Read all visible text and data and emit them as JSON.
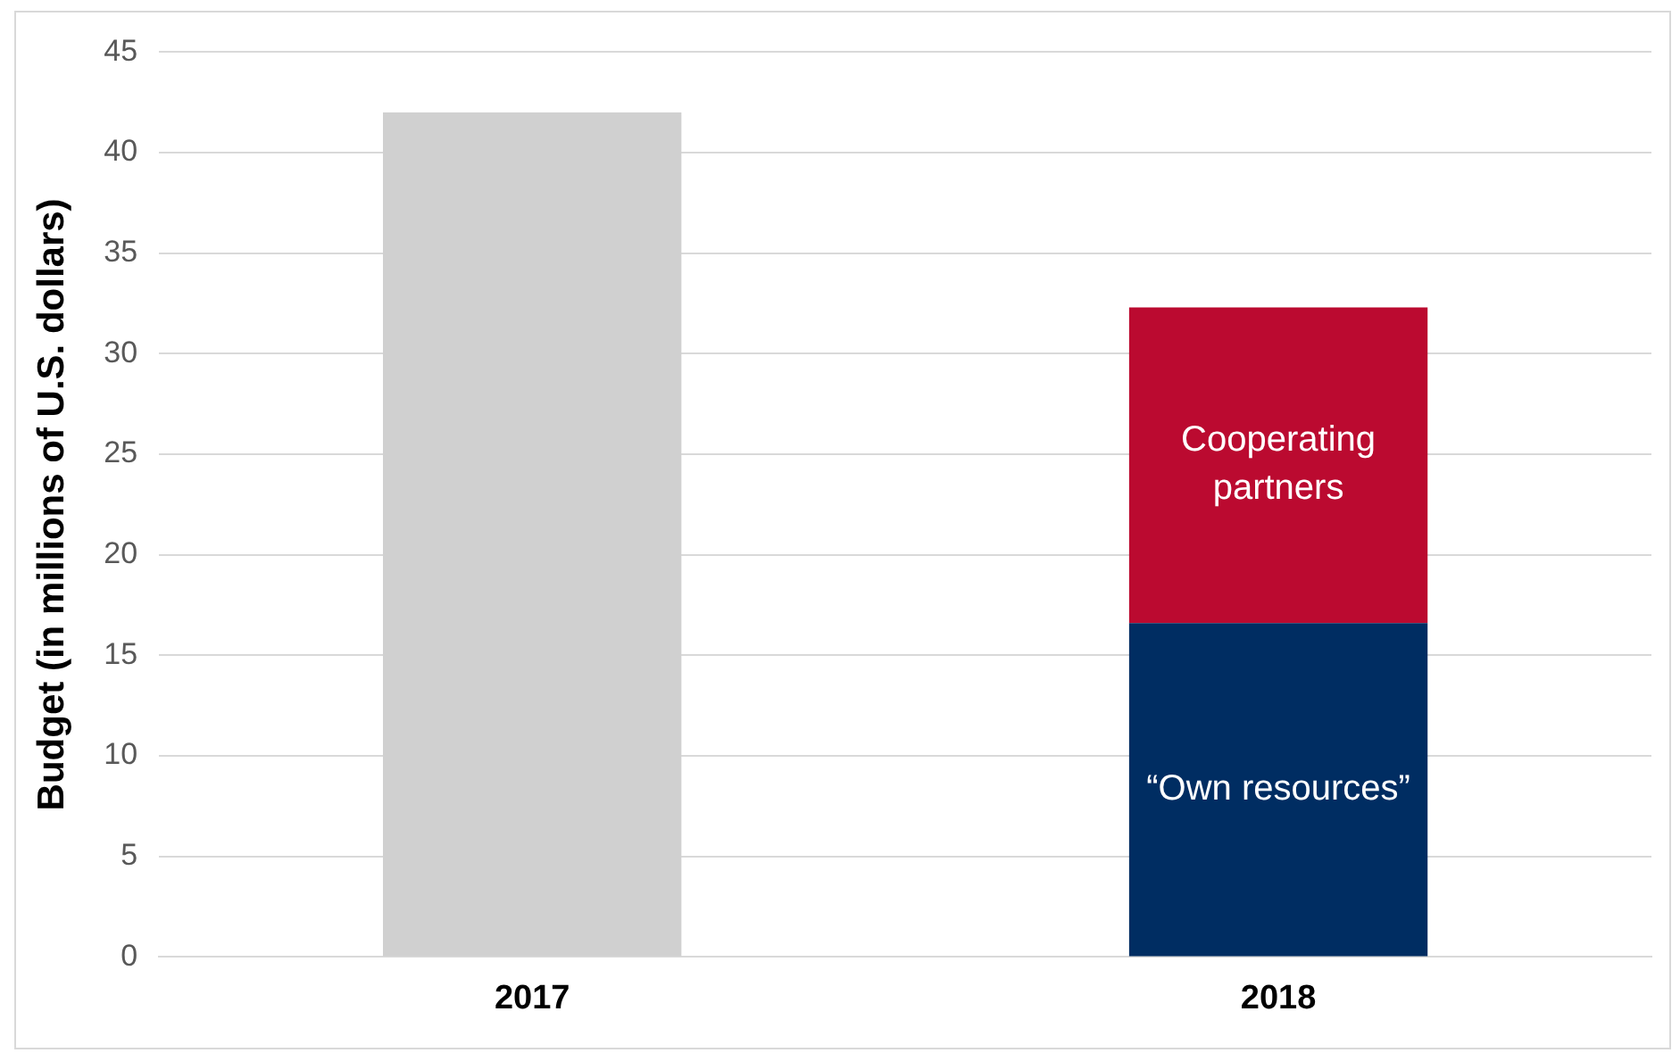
{
  "chart_data": {
    "type": "bar",
    "stacked": true,
    "ylabel": "Budget (in millions of U.S. dollars)",
    "categories": [
      "2017",
      "2018"
    ],
    "series": [
      {
        "color": "#d0d0d0",
        "values": [
          42,
          null
        ]
      },
      {
        "name": "“Own resources”",
        "color": "#002d62",
        "values": [
          null,
          16.6
        ]
      },
      {
        "name": "Cooperating partners",
        "color": "#bb0a30",
        "values": [
          null,
          15.7
        ]
      }
    ],
    "ylim": [
      0,
      45
    ],
    "yticks": [
      0,
      5,
      10,
      15,
      20,
      25,
      30,
      35,
      40,
      45
    ],
    "grid": "y",
    "legend": false
  }
}
